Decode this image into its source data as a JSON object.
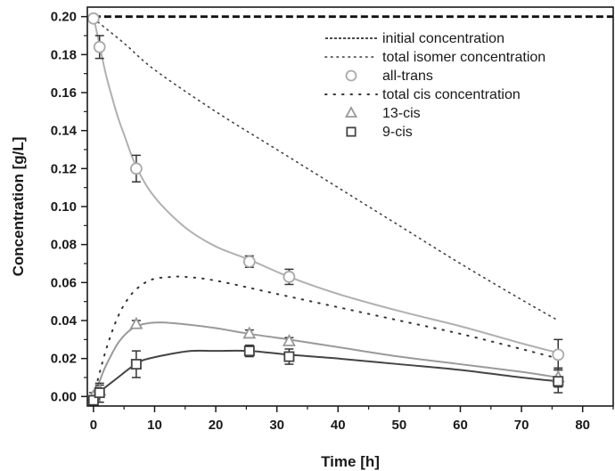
{
  "chart_data": {
    "type": "scatter",
    "xlabel": "Time [h]",
    "ylabel": "Concentration [g/L]",
    "xlim": [
      -1,
      85
    ],
    "ylim": [
      -0.005,
      0.205
    ],
    "x_ticks": [
      0,
      10,
      20,
      30,
      40,
      50,
      60,
      70,
      80
    ],
    "y_ticks": [
      0.0,
      0.02,
      0.04,
      0.06,
      0.08,
      0.1,
      0.12,
      0.14,
      0.16,
      0.18,
      0.2
    ],
    "y_tick_labels": [
      "0.00",
      "0.02",
      "0.04",
      "0.06",
      "0.08",
      "0.10",
      "0.12",
      "0.14",
      "0.16",
      "0.18",
      "0.20"
    ],
    "legend_position": "top-right",
    "legend": [
      {
        "label": "initial concentration",
        "kind": "line",
        "style": "dashed-bold",
        "color": "#111111"
      },
      {
        "label": "total isomer concentration",
        "kind": "line",
        "style": "dotted-fine",
        "color": "#333333"
      },
      {
        "label": "all-trans",
        "kind": "marker",
        "marker": "circle",
        "color": "#aaaaaa"
      },
      {
        "label": "total cis concentration",
        "kind": "line",
        "style": "dotted",
        "color": "#333333"
      },
      {
        "label": "13-cis",
        "kind": "marker",
        "marker": "triangle",
        "color": "#999999"
      },
      {
        "label": "9-cis",
        "kind": "marker",
        "marker": "square",
        "color": "#444444"
      }
    ],
    "series": [
      {
        "key": "all-trans",
        "marker": "circle",
        "color": "#aaaaaa",
        "points": [
          {
            "x": 0,
            "y": 0.199,
            "err": 0.002
          },
          {
            "x": 1,
            "y": 0.184,
            "err": 0.006
          },
          {
            "x": 7,
            "y": 0.12,
            "err": 0.007
          },
          {
            "x": 25.5,
            "y": 0.071,
            "err": 0.003
          },
          {
            "x": 32,
            "y": 0.063,
            "err": 0.004
          },
          {
            "x": 76,
            "y": 0.022,
            "err": 0.008
          }
        ]
      },
      {
        "key": "13-cis",
        "marker": "triangle",
        "color": "#999999",
        "points": [
          {
            "x": 0,
            "y": 0.0,
            "err": 0.002
          },
          {
            "x": 1,
            "y": 0.003,
            "err": 0.003
          },
          {
            "x": 7,
            "y": 0.038,
            "err": 0.002
          },
          {
            "x": 25.5,
            "y": 0.033,
            "err": 0.002
          },
          {
            "x": 32,
            "y": 0.029,
            "err": 0.002
          },
          {
            "x": 76,
            "y": 0.01,
            "err": 0.005
          }
        ]
      },
      {
        "key": "9-cis",
        "marker": "square",
        "color": "#444444",
        "points": [
          {
            "x": 0,
            "y": -0.002,
            "err": 0.002
          },
          {
            "x": 1,
            "y": 0.002,
            "err": 0.005
          },
          {
            "x": 7,
            "y": 0.017,
            "err": 0.007
          },
          {
            "x": 25.5,
            "y": 0.024,
            "err": 0.003
          },
          {
            "x": 32,
            "y": 0.021,
            "err": 0.004
          },
          {
            "x": 76,
            "y": 0.008,
            "err": 0.006
          }
        ]
      }
    ],
    "curves": [
      {
        "key": "initial concentration",
        "style": "dashed-bold",
        "color": "#111111",
        "points": [
          [
            0,
            0.2
          ],
          [
            85,
            0.2
          ]
        ]
      },
      {
        "key": "total isomer concentration",
        "style": "dotted-fine",
        "color": "#444444",
        "points": [
          [
            0,
            0.199
          ],
          [
            5,
            0.186
          ],
          [
            10,
            0.172
          ],
          [
            20,
            0.15
          ],
          [
            30,
            0.13
          ],
          [
            40,
            0.11
          ],
          [
            50,
            0.09
          ],
          [
            60,
            0.07
          ],
          [
            70,
            0.051
          ],
          [
            76,
            0.04
          ]
        ]
      },
      {
        "key": "total cis concentration",
        "style": "dotted",
        "color": "#333333",
        "points": [
          [
            0,
            0.0
          ],
          [
            2,
            0.024
          ],
          [
            4,
            0.042
          ],
          [
            6,
            0.053
          ],
          [
            8,
            0.059
          ],
          [
            10,
            0.062
          ],
          [
            13,
            0.063
          ],
          [
            15,
            0.063
          ],
          [
            20,
            0.061
          ],
          [
            30,
            0.054
          ],
          [
            40,
            0.047
          ],
          [
            50,
            0.04
          ],
          [
            60,
            0.033
          ],
          [
            70,
            0.025
          ],
          [
            76,
            0.02
          ]
        ]
      },
      {
        "key": "all-trans fit",
        "style": "solid",
        "color": "#b0b0b0",
        "points": [
          [
            0,
            0.2
          ],
          [
            1,
            0.185
          ],
          [
            2,
            0.17
          ],
          [
            3,
            0.158
          ],
          [
            4,
            0.147
          ],
          [
            5,
            0.138
          ],
          [
            7,
            0.121
          ],
          [
            10,
            0.105
          ],
          [
            15,
            0.089
          ],
          [
            20,
            0.079
          ],
          [
            25.5,
            0.072
          ],
          [
            32,
            0.063
          ],
          [
            40,
            0.054
          ],
          [
            50,
            0.045
          ],
          [
            60,
            0.037
          ],
          [
            70,
            0.028
          ],
          [
            76,
            0.023
          ]
        ]
      },
      {
        "key": "13-cis fit",
        "style": "solid",
        "color": "#9a9a9a",
        "points": [
          [
            0,
            0.0
          ],
          [
            1,
            0.008
          ],
          [
            2,
            0.016
          ],
          [
            4,
            0.028
          ],
          [
            6,
            0.035
          ],
          [
            8,
            0.038
          ],
          [
            11,
            0.039
          ],
          [
            15,
            0.038
          ],
          [
            20,
            0.036
          ],
          [
            25.5,
            0.033
          ],
          [
            32,
            0.03
          ],
          [
            40,
            0.026
          ],
          [
            50,
            0.021
          ],
          [
            60,
            0.017
          ],
          [
            70,
            0.013
          ],
          [
            76,
            0.01
          ]
        ]
      },
      {
        "key": "9-cis fit",
        "style": "solid",
        "color": "#444444",
        "points": [
          [
            0,
            0.0
          ],
          [
            2,
            0.005
          ],
          [
            4,
            0.01
          ],
          [
            6,
            0.015
          ],
          [
            8,
            0.019
          ],
          [
            12,
            0.022
          ],
          [
            16,
            0.024
          ],
          [
            20,
            0.024
          ],
          [
            25.5,
            0.024
          ],
          [
            32,
            0.022
          ],
          [
            40,
            0.02
          ],
          [
            50,
            0.017
          ],
          [
            60,
            0.014
          ],
          [
            70,
            0.01
          ],
          [
            76,
            0.008
          ]
        ]
      }
    ]
  }
}
